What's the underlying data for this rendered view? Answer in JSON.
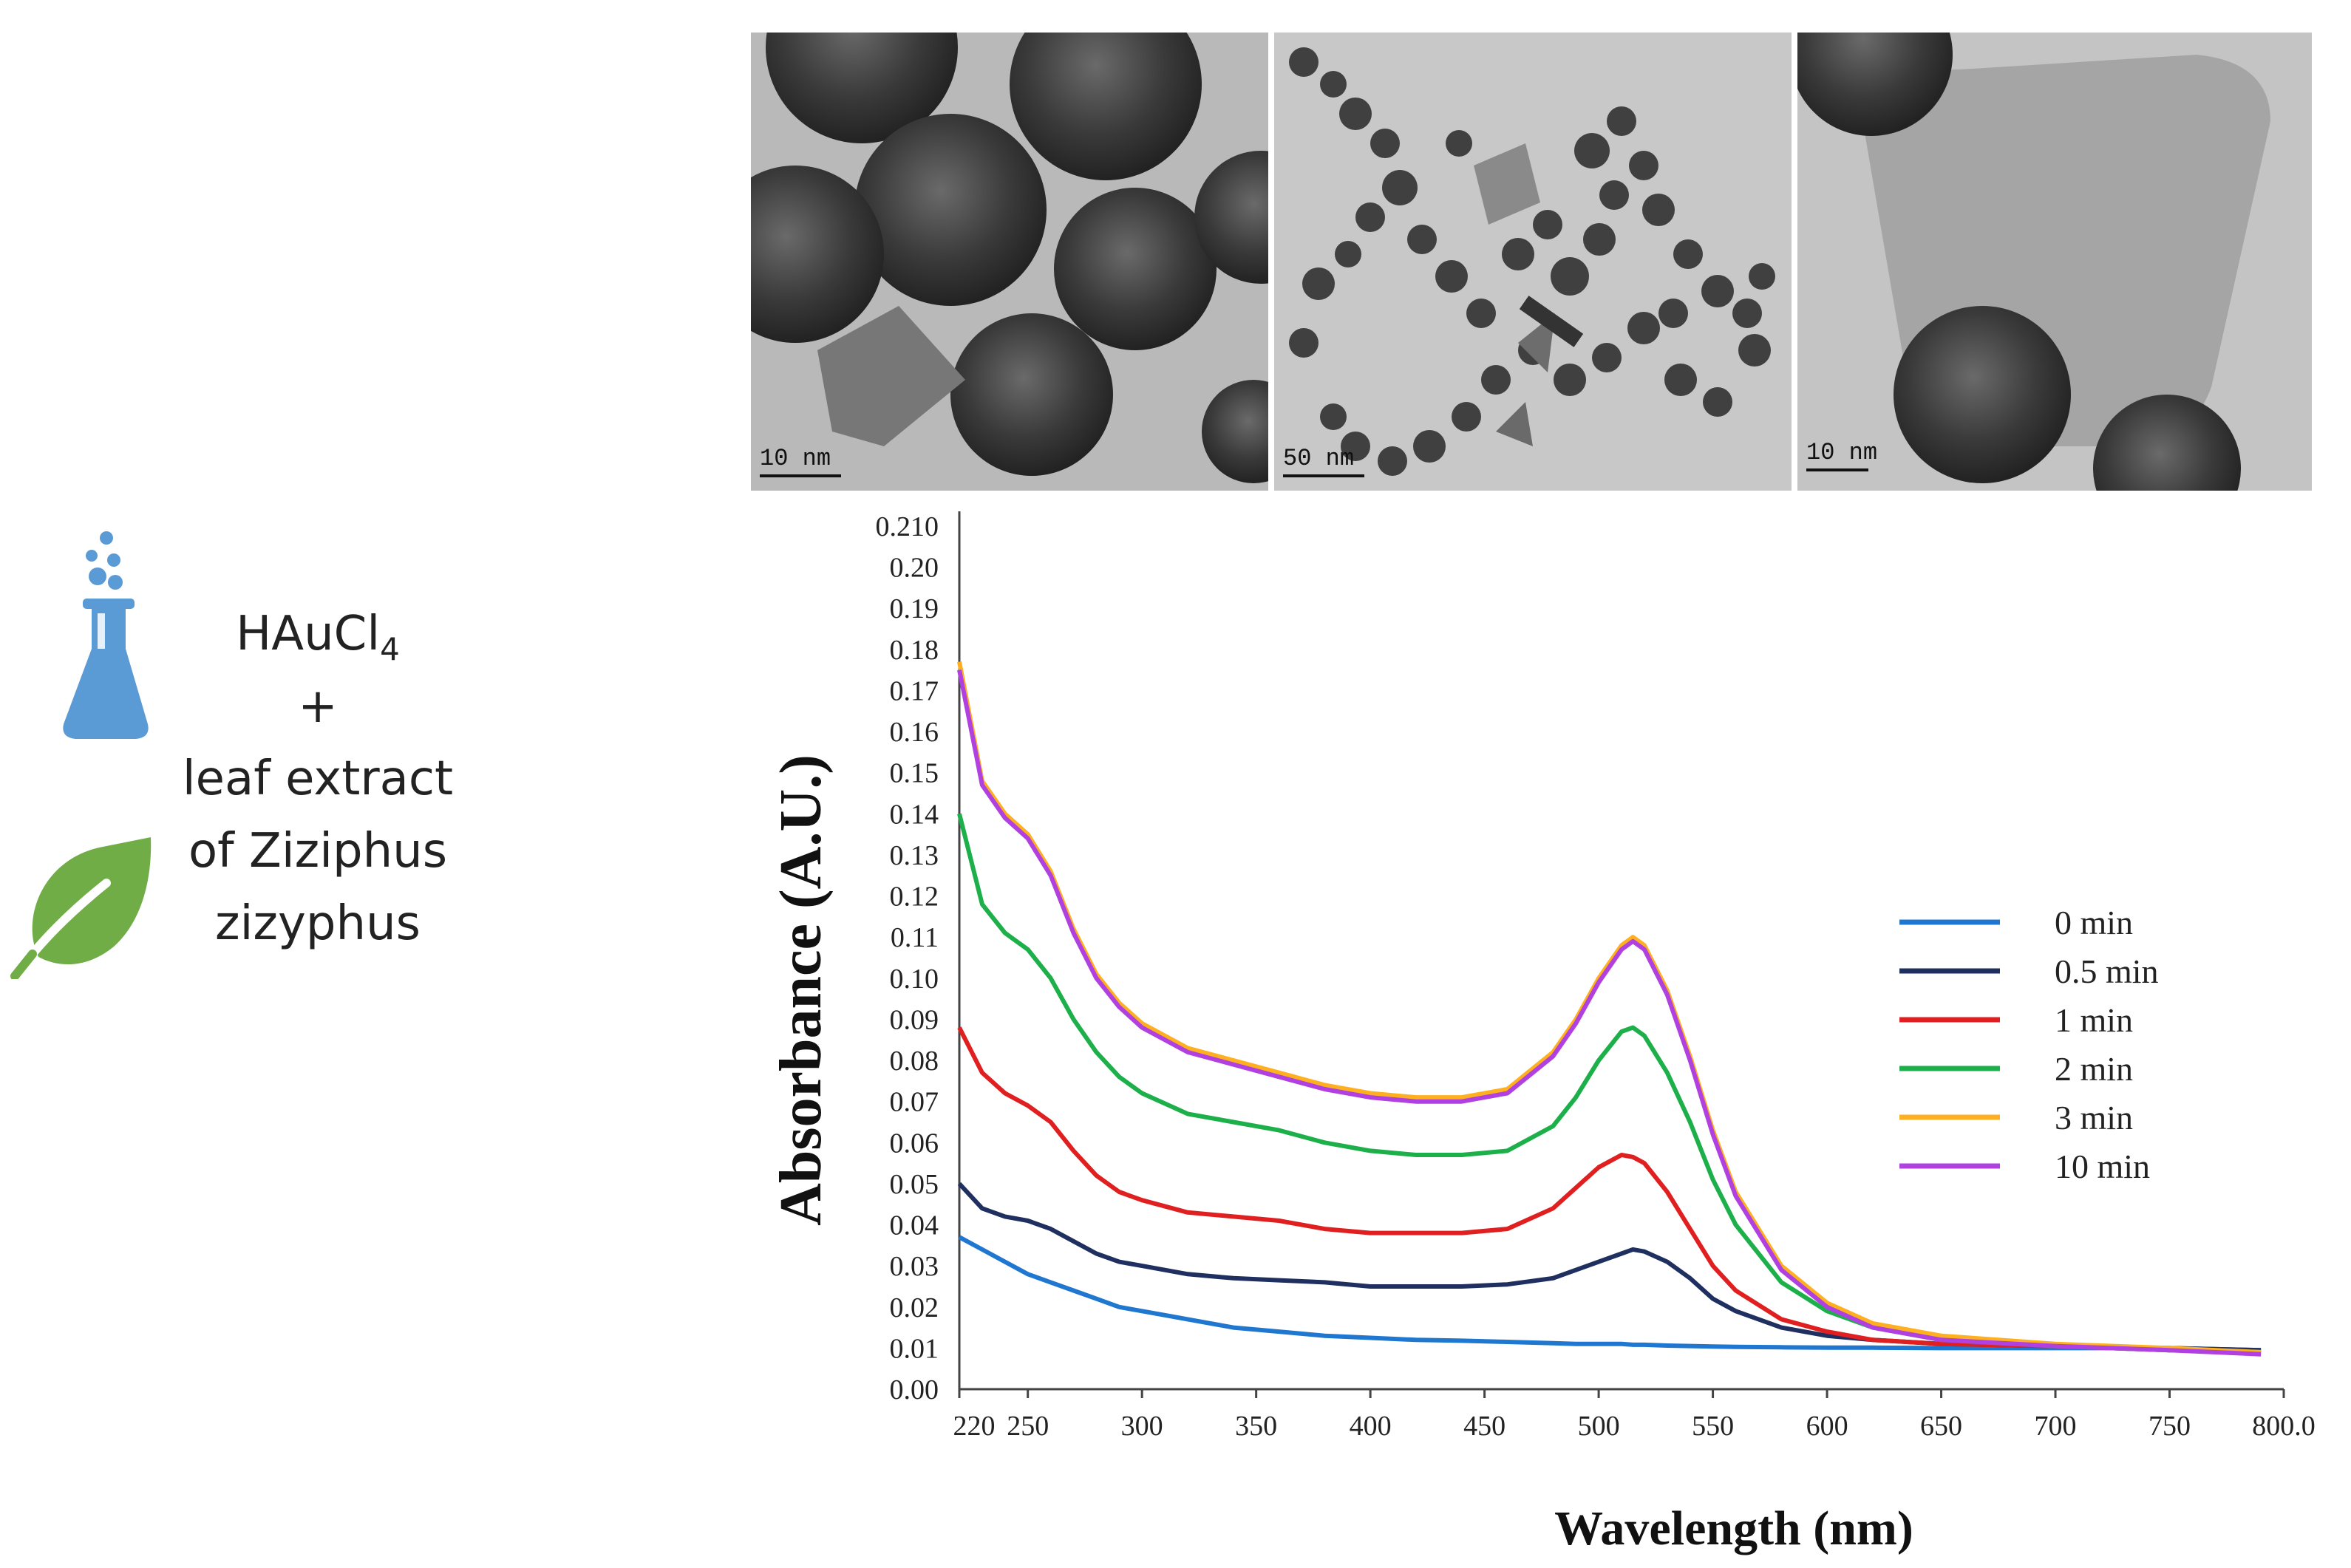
{
  "reagents": {
    "line1_main": "HAuCl",
    "line1_sub": "4",
    "line2": "+",
    "line3": "leaf extract",
    "line4": "of Ziziphus",
    "line5": "zizyphus",
    "flask_color": "#5b9bd5",
    "leaf_color": "#70ad47"
  },
  "tem_images": [
    {
      "scale_label": "10 nm"
    },
    {
      "scale_label": "50 nm"
    },
    {
      "scale_label": "10 nm"
    }
  ],
  "chart_data": {
    "type": "line",
    "xlabel": "Wavelength (nm)",
    "ylabel": "Absorbance (A.U.)",
    "xlim": [
      220,
      800
    ],
    "ylim": [
      0,
      0.21
    ],
    "x_ticks": [
      "220",
      "250",
      "300",
      "350",
      "400",
      "450",
      "500",
      "550",
      "600",
      "650",
      "700",
      "750",
      "800.0"
    ],
    "y_ticks": [
      "0.00",
      "0.01",
      "0.02",
      "0.03",
      "0.04",
      "0.05",
      "0.06",
      "0.07",
      "0.08",
      "0.09",
      "0.10",
      "0.11",
      "0.12",
      "0.13",
      "0.14",
      "0.15",
      "0.16",
      "0.17",
      "0.18",
      "0.19",
      "0.20",
      "0.210"
    ],
    "legend_position": "right",
    "x": [
      220,
      230,
      240,
      250,
      260,
      270,
      280,
      290,
      300,
      320,
      340,
      360,
      380,
      400,
      420,
      440,
      460,
      480,
      490,
      500,
      510,
      515,
      520,
      530,
      540,
      550,
      560,
      580,
      600,
      620,
      650,
      700,
      750,
      790
    ],
    "series": [
      {
        "name": "0 min",
        "color": "#1f77d0",
        "values": [
          0.037,
          0.034,
          0.031,
          0.028,
          0.026,
          0.024,
          0.022,
          0.02,
          0.019,
          0.017,
          0.015,
          0.014,
          0.013,
          0.0125,
          0.012,
          0.0118,
          0.0115,
          0.0112,
          0.011,
          0.011,
          0.011,
          0.0108,
          0.0108,
          0.0106,
          0.0105,
          0.0104,
          0.0103,
          0.0102,
          0.0101,
          0.0101,
          0.01,
          0.01,
          0.01,
          0.0095
        ]
      },
      {
        "name": "0.5 min",
        "color": "#1f2f5f",
        "values": [
          0.05,
          0.044,
          0.042,
          0.041,
          0.039,
          0.036,
          0.033,
          0.031,
          0.03,
          0.028,
          0.027,
          0.0265,
          0.026,
          0.025,
          0.025,
          0.025,
          0.0255,
          0.027,
          0.029,
          0.031,
          0.033,
          0.034,
          0.0335,
          0.031,
          0.027,
          0.022,
          0.019,
          0.015,
          0.013,
          0.012,
          0.011,
          0.0105,
          0.01,
          0.0095
        ]
      },
      {
        "name": "1 min",
        "color": "#e02020",
        "values": [
          0.088,
          0.077,
          0.072,
          0.069,
          0.065,
          0.058,
          0.052,
          0.048,
          0.046,
          0.043,
          0.042,
          0.041,
          0.039,
          0.038,
          0.038,
          0.038,
          0.039,
          0.044,
          0.049,
          0.054,
          0.057,
          0.0565,
          0.055,
          0.048,
          0.039,
          0.03,
          0.024,
          0.017,
          0.014,
          0.012,
          0.011,
          0.0105,
          0.0095,
          0.009
        ]
      },
      {
        "name": "2 min",
        "color": "#1db04a",
        "values": [
          0.14,
          0.118,
          0.111,
          0.107,
          0.1,
          0.09,
          0.082,
          0.076,
          0.072,
          0.067,
          0.065,
          0.063,
          0.06,
          0.058,
          0.057,
          0.057,
          0.058,
          0.064,
          0.071,
          0.08,
          0.087,
          0.088,
          0.086,
          0.077,
          0.065,
          0.051,
          0.04,
          0.026,
          0.019,
          0.015,
          0.012,
          0.0105,
          0.0095,
          0.009
        ]
      },
      {
        "name": "3 min",
        "color": "#ffb020",
        "values": [
          0.177,
          0.148,
          0.14,
          0.135,
          0.126,
          0.112,
          0.101,
          0.094,
          0.089,
          0.083,
          0.08,
          0.077,
          0.074,
          0.072,
          0.071,
          0.071,
          0.073,
          0.082,
          0.09,
          0.1,
          0.108,
          0.11,
          0.108,
          0.097,
          0.081,
          0.063,
          0.048,
          0.03,
          0.021,
          0.016,
          0.013,
          0.011,
          0.01,
          0.009
        ]
      },
      {
        "name": "10 min",
        "color": "#b040e0",
        "values": [
          0.175,
          0.147,
          0.139,
          0.134,
          0.125,
          0.111,
          0.1,
          0.093,
          0.088,
          0.082,
          0.079,
          0.076,
          0.073,
          0.071,
          0.07,
          0.07,
          0.072,
          0.081,
          0.089,
          0.099,
          0.107,
          0.109,
          0.107,
          0.096,
          0.08,
          0.062,
          0.047,
          0.029,
          0.02,
          0.015,
          0.012,
          0.0105,
          0.0095,
          0.0085
        ]
      }
    ]
  }
}
